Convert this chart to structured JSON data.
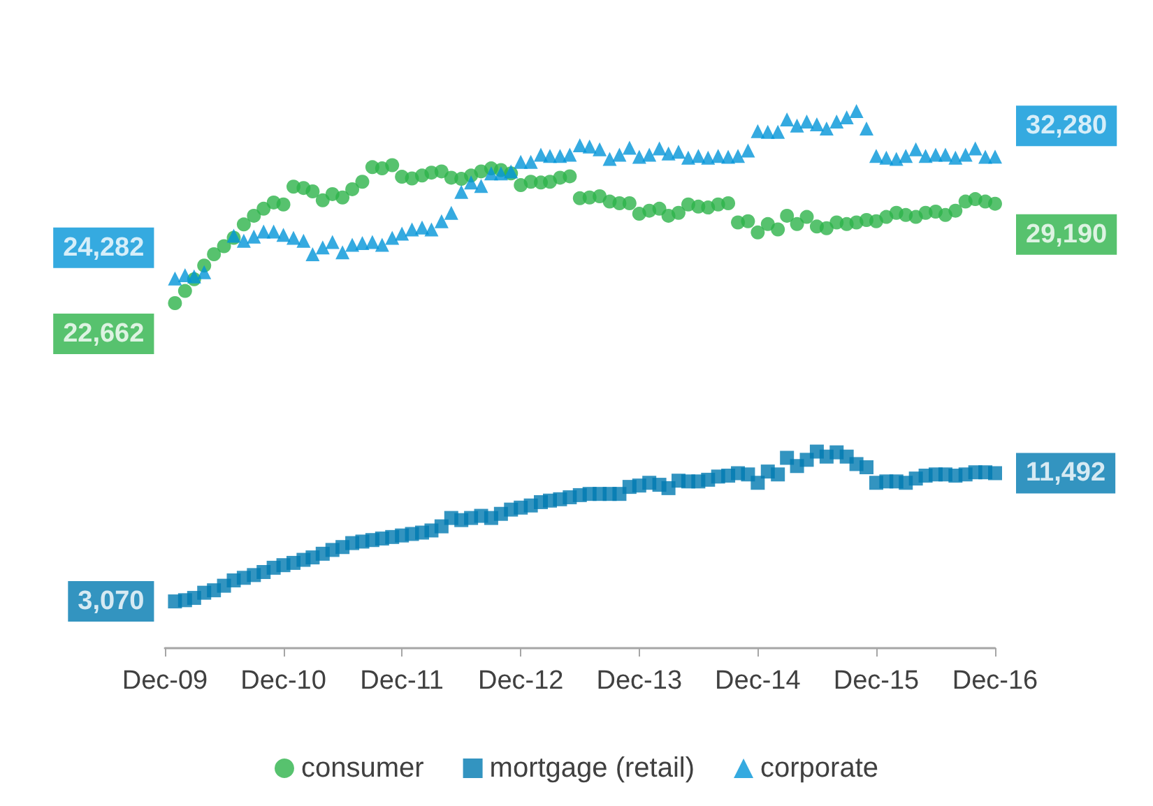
{
  "chart_data": {
    "type": "scatter",
    "x": [
      "2010-01",
      "2010-02",
      "2010-03",
      "2010-04",
      "2010-05",
      "2010-06",
      "2010-07",
      "2010-08",
      "2010-09",
      "2010-10",
      "2010-11",
      "2010-12",
      "2011-01",
      "2011-02",
      "2011-03",
      "2011-04",
      "2011-05",
      "2011-06",
      "2011-07",
      "2011-08",
      "2011-09",
      "2011-10",
      "2011-11",
      "2011-12",
      "2012-01",
      "2012-02",
      "2012-03",
      "2012-04",
      "2012-05",
      "2012-06",
      "2012-07",
      "2012-08",
      "2012-09",
      "2012-10",
      "2012-11",
      "2012-12",
      "2013-01",
      "2013-02",
      "2013-03",
      "2013-04",
      "2013-05",
      "2013-06",
      "2013-07",
      "2013-08",
      "2013-09",
      "2013-10",
      "2013-11",
      "2013-12",
      "2014-01",
      "2014-02",
      "2014-03",
      "2014-04",
      "2014-05",
      "2014-06",
      "2014-07",
      "2014-08",
      "2014-09",
      "2014-10",
      "2014-11",
      "2014-12",
      "2015-01",
      "2015-02",
      "2015-03",
      "2015-04",
      "2015-05",
      "2015-06",
      "2015-07",
      "2015-08",
      "2015-09",
      "2015-10",
      "2015-11",
      "2015-12",
      "2016-01",
      "2016-02",
      "2016-03",
      "2016-04",
      "2016-05",
      "2016-06",
      "2016-07",
      "2016-08",
      "2016-09",
      "2016-10",
      "2016-11",
      "2016-12"
    ],
    "series": [
      {
        "name": "consumer",
        "color": "#2db34a",
        "marker": "circle",
        "values": [
          22662,
          23460,
          24230,
          25130,
          25870,
          26400,
          26950,
          27830,
          28400,
          28860,
          29270,
          29140,
          30310,
          30220,
          30000,
          29410,
          29820,
          29600,
          30140,
          30630,
          31590,
          31510,
          31720,
          30960,
          30850,
          31040,
          31230,
          31310,
          30900,
          30820,
          31040,
          31310,
          31510,
          31400,
          31180,
          30410,
          30630,
          30580,
          30630,
          30900,
          30990,
          29550,
          29600,
          29680,
          29330,
          29220,
          29220,
          28530,
          28730,
          28860,
          28400,
          28590,
          29140,
          29000,
          28940,
          29140,
          29220,
          27960,
          28040,
          27300,
          27850,
          27500,
          28400,
          27850,
          28320,
          27690,
          27580,
          27960,
          27850,
          27960,
          28120,
          28040,
          28320,
          28590,
          28450,
          28320,
          28590,
          28670,
          28450,
          28730,
          29330,
          29490,
          29330,
          29190
        ],
        "value_labels": [
          "22,662",
          null,
          null,
          null,
          null,
          null,
          null,
          null,
          null,
          null,
          null,
          null,
          null,
          null,
          null,
          null,
          null,
          null,
          null,
          null,
          null,
          null,
          null,
          null,
          null,
          null,
          null,
          null,
          null,
          null,
          null,
          null,
          null,
          null,
          null,
          null,
          null,
          null,
          null,
          null,
          null,
          null,
          null,
          null,
          null,
          null,
          null,
          null,
          null,
          null,
          null,
          null,
          null,
          null,
          null,
          null,
          null,
          null,
          null,
          null,
          null,
          null,
          null,
          null,
          null,
          null,
          null,
          null,
          null,
          null,
          null,
          null,
          null,
          null,
          null,
          null,
          null,
          null,
          null,
          null,
          null,
          null,
          null,
          "29,190"
        ]
      },
      {
        "name": "mortgage (retail)",
        "color": "#0079b0",
        "marker": "square",
        "values": [
          3070,
          3150,
          3300,
          3640,
          3800,
          4100,
          4450,
          4620,
          4800,
          5000,
          5280,
          5450,
          5600,
          5800,
          5960,
          6200,
          6450,
          6640,
          6900,
          7000,
          7100,
          7200,
          7300,
          7400,
          7500,
          7590,
          7730,
          8000,
          8550,
          8410,
          8550,
          8690,
          8550,
          8820,
          9100,
          9230,
          9370,
          9590,
          9690,
          9780,
          9910,
          10050,
          10130,
          10130,
          10130,
          10130,
          10590,
          10680,
          10860,
          10730,
          10510,
          11000,
          10950,
          10950,
          11060,
          11270,
          11330,
          11490,
          11410,
          10860,
          11600,
          11410,
          12500,
          11960,
          12370,
          12910,
          12580,
          12860,
          12580,
          12090,
          11880,
          10860,
          10950,
          10950,
          10860,
          11140,
          11330,
          11410,
          11410,
          11330,
          11410,
          11550,
          11550,
          11492
        ],
        "value_labels": [
          "3,070",
          null,
          null,
          null,
          null,
          null,
          null,
          null,
          null,
          null,
          null,
          null,
          null,
          null,
          null,
          null,
          null,
          null,
          null,
          null,
          null,
          null,
          null,
          null,
          null,
          null,
          null,
          null,
          null,
          null,
          null,
          null,
          null,
          null,
          null,
          null,
          null,
          null,
          null,
          null,
          null,
          null,
          null,
          null,
          null,
          null,
          null,
          null,
          null,
          null,
          null,
          null,
          null,
          null,
          null,
          null,
          null,
          null,
          null,
          null,
          null,
          null,
          null,
          null,
          null,
          null,
          null,
          null,
          null,
          null,
          null,
          null,
          null,
          null,
          null,
          null,
          null,
          null,
          null,
          null,
          null,
          null,
          null,
          "11,492"
        ]
      },
      {
        "name": "corporate",
        "color": "#0395d8",
        "marker": "triangle",
        "values": [
          24282,
          24500,
          24420,
          24690,
          null,
          null,
          27090,
          26760,
          27030,
          27360,
          27360,
          27140,
          26950,
          26760,
          25870,
          26320,
          26680,
          26000,
          26490,
          26600,
          26680,
          26490,
          26950,
          27220,
          27500,
          27630,
          27500,
          28040,
          28590,
          29960,
          30580,
          30360,
          31180,
          31180,
          31310,
          31940,
          31940,
          32410,
          32330,
          32330,
          32410,
          33030,
          32950,
          32760,
          32130,
          32410,
          32870,
          32270,
          32410,
          32820,
          32490,
          32600,
          32210,
          32330,
          32210,
          32330,
          32270,
          32330,
          32680,
          33960,
          33910,
          33910,
          34720,
          34320,
          34590,
          34400,
          34130,
          34590,
          34860,
          35270,
          34130,
          32330,
          32210,
          32130,
          32330,
          32760,
          32330,
          32410,
          32410,
          32210,
          32410,
          32820,
          32270,
          32280
        ],
        "value_labels": [
          "24,282",
          null,
          null,
          null,
          null,
          null,
          null,
          null,
          null,
          null,
          null,
          null,
          null,
          null,
          null,
          null,
          null,
          null,
          null,
          null,
          null,
          null,
          null,
          null,
          null,
          null,
          null,
          null,
          null,
          null,
          null,
          null,
          null,
          null,
          null,
          null,
          null,
          null,
          null,
          null,
          null,
          null,
          null,
          null,
          null,
          null,
          null,
          null,
          null,
          null,
          null,
          null,
          null,
          null,
          null,
          null,
          null,
          null,
          null,
          null,
          null,
          null,
          null,
          null,
          null,
          null,
          null,
          null,
          null,
          null,
          null,
          null,
          null,
          null,
          null,
          null,
          null,
          null,
          null,
          null,
          null,
          null,
          null,
          "32,280"
        ]
      }
    ],
    "xlim": [
      "2009-12",
      "2016-12"
    ],
    "xticks": [
      {
        "value": "2009-12",
        "label": "Dec-09"
      },
      {
        "value": "2010-12",
        "label": "Dec-10"
      },
      {
        "value": "2011-12",
        "label": "Dec-11"
      },
      {
        "value": "2012-12",
        "label": "Dec-12"
      },
      {
        "value": "2013-12",
        "label": "Dec-13"
      },
      {
        "value": "2014-12",
        "label": "Dec-14"
      },
      {
        "value": "2015-12",
        "label": "Dec-15"
      },
      {
        "value": "2016-12",
        "label": "Dec-16"
      }
    ],
    "tick_labels": "x",
    "grid": false,
    "legend": "bottom"
  }
}
